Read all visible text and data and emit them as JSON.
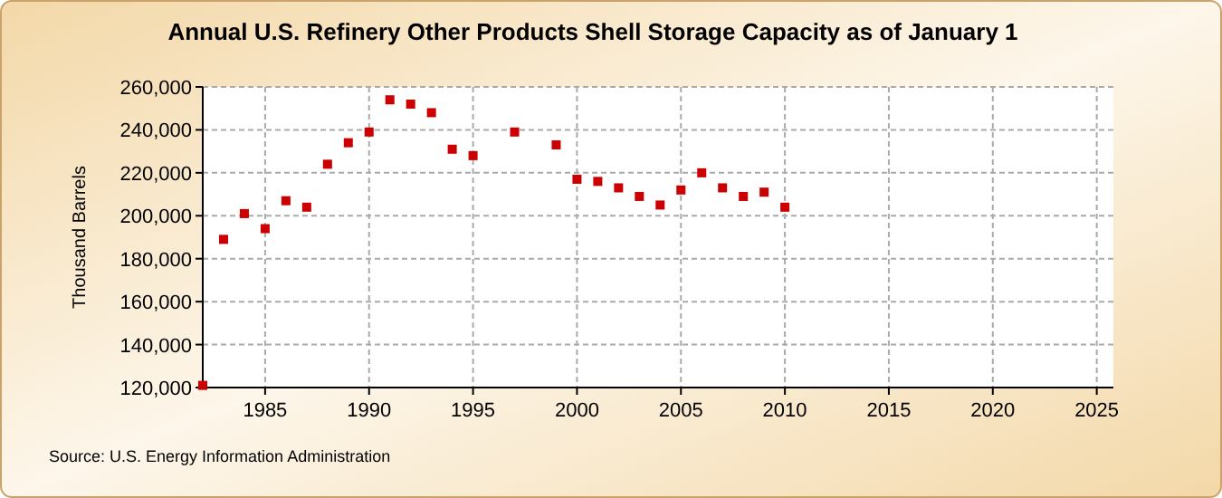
{
  "chart_data": {
    "type": "scatter",
    "title": "Annual U.S. Refinery Other Products Shell Storage Capacity as of January 1",
    "ylabel": "Thousand Barrels",
    "annotations": [
      "Source: U.S. Energy Information Administration"
    ],
    "x": [
      1982,
      1983,
      1984,
      1985,
      1986,
      1987,
      1988,
      1989,
      1990,
      1991,
      1992,
      1993,
      1994,
      1995,
      1997,
      1999,
      2000,
      2001,
      2002,
      2003,
      2004,
      2005,
      2006,
      2007,
      2008,
      2009,
      2010
    ],
    "series": [
      {
        "color": "#cc0000",
        "values": [
          121000,
          189000,
          201000,
          194000,
          207000,
          204000,
          224000,
          234000,
          239000,
          254000,
          252000,
          248000,
          231000,
          228000,
          239000,
          233000,
          217000,
          216000,
          213000,
          209000,
          205000,
          212000,
          220000,
          213000,
          209000,
          211000,
          204000
        ]
      }
    ],
    "xlim": [
      1982,
      2025.8
    ],
    "xticks": [
      1985,
      1990,
      1995,
      2000,
      2005,
      2010,
      2015,
      2020,
      2025
    ],
    "ylim": [
      120000,
      260000
    ],
    "yticks": [
      {
        "value": 120000,
        "label": "120,000"
      },
      {
        "value": 140000,
        "label": "140,000"
      },
      {
        "value": 160000,
        "label": "160,000"
      },
      {
        "value": 180000,
        "label": "180,000"
      },
      {
        "value": 200000,
        "label": "200,000"
      },
      {
        "value": 220000,
        "label": "220,000"
      },
      {
        "value": 240000,
        "label": "240,000"
      },
      {
        "value": 260000,
        "label": "260,000"
      }
    ],
    "grid": true,
    "marker": "square"
  }
}
